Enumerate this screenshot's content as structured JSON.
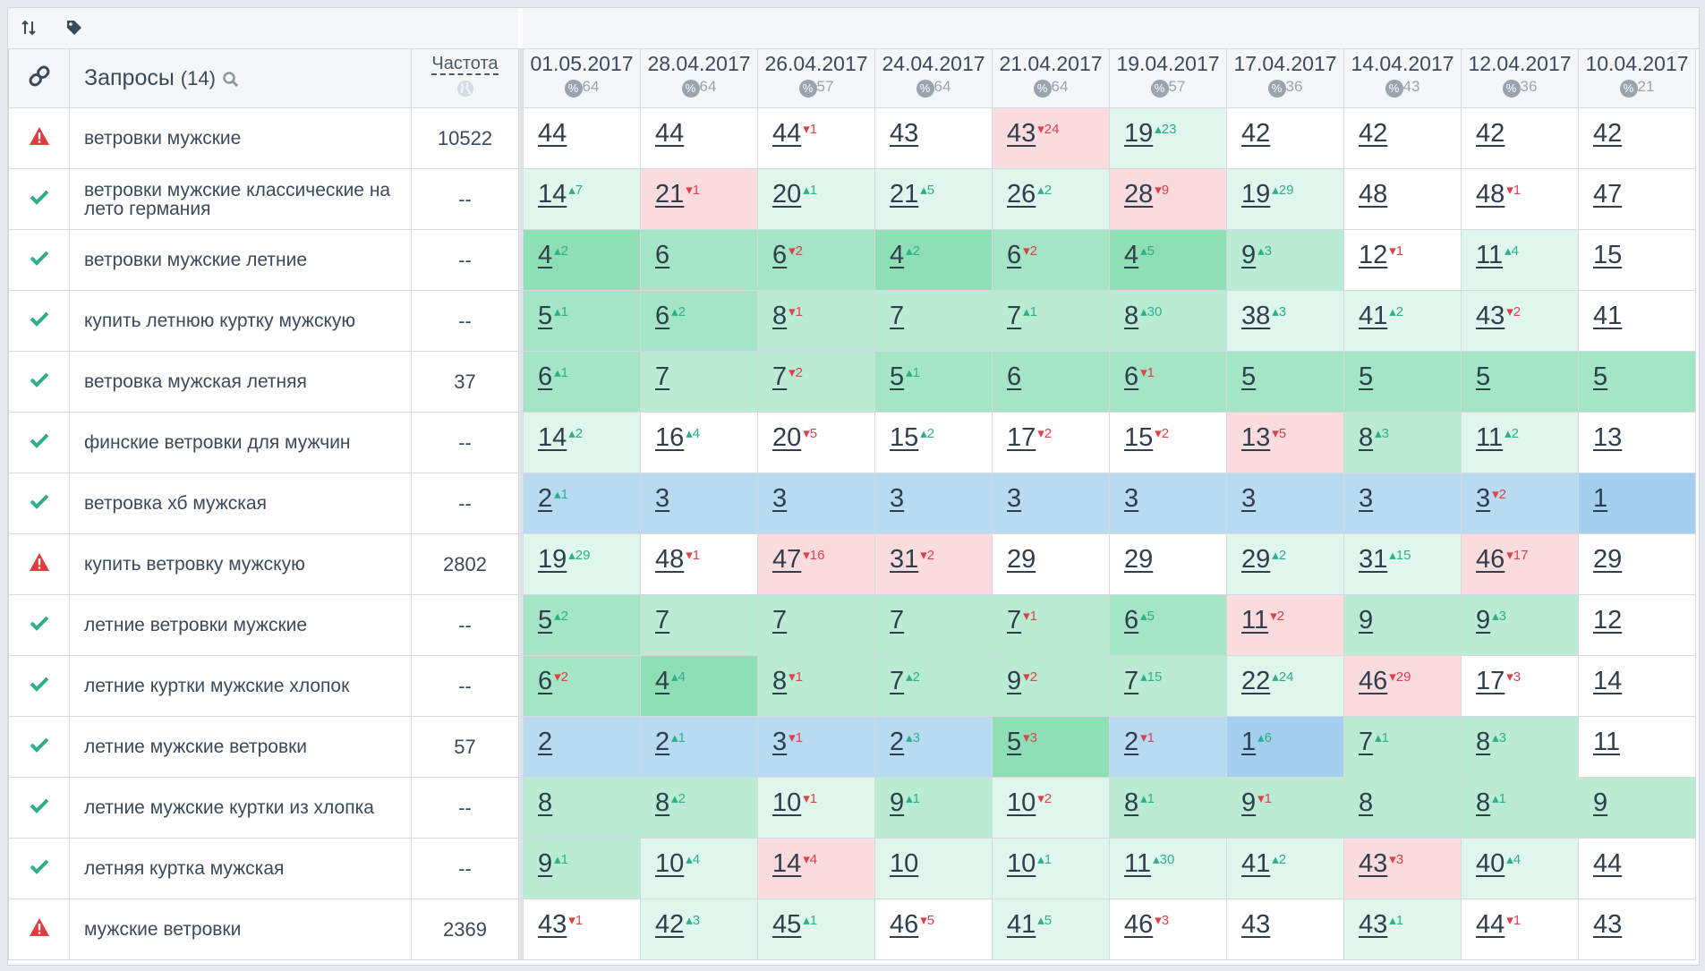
{
  "toolbar": {
    "sort_icon": "sort-arrows-icon",
    "tag_icon": "tag-icon"
  },
  "header": {
    "link_icon": "link-icon",
    "queries_title": "Запросы",
    "queries_count": "(14)",
    "search_icon": "search-icon",
    "freq_label": "Частота",
    "globe_icon": "globe-icon",
    "dates": [
      {
        "date": "01.05.2017",
        "pct": "64"
      },
      {
        "date": "28.04.2017",
        "pct": "64"
      },
      {
        "date": "26.04.2017",
        "pct": "57"
      },
      {
        "date": "24.04.2017",
        "pct": "64"
      },
      {
        "date": "21.04.2017",
        "pct": "64"
      },
      {
        "date": "19.04.2017",
        "pct": "57"
      },
      {
        "date": "17.04.2017",
        "pct": "36"
      },
      {
        "date": "14.04.2017",
        "pct": "43"
      },
      {
        "date": "12.04.2017",
        "pct": "36"
      },
      {
        "date": "10.04.2017",
        "pct": "21"
      }
    ],
    "pct_symbol": "%"
  },
  "colors": {
    "green_check": "#2eaf8c",
    "red_warning": "#e03c3c",
    "delta_up": "#2eaf8c",
    "delta_down": "#e0404a"
  },
  "rows": [
    {
      "status": "warning",
      "query": "ветровки мужские",
      "freq": "10522",
      "cells": [
        {
          "v": "44",
          "d": "",
          "bg": "w"
        },
        {
          "v": "44",
          "d": "",
          "bg": "w"
        },
        {
          "v": "44",
          "d": "-1",
          "bg": "w"
        },
        {
          "v": "43",
          "d": "",
          "bg": "w"
        },
        {
          "v": "43",
          "d": "-24",
          "bg": "r"
        },
        {
          "v": "19",
          "d": "+23",
          "bg": "g1"
        },
        {
          "v": "42",
          "d": "",
          "bg": "w"
        },
        {
          "v": "42",
          "d": "",
          "bg": "w"
        },
        {
          "v": "42",
          "d": "",
          "bg": "w"
        },
        {
          "v": "42",
          "d": "",
          "bg": "w"
        }
      ]
    },
    {
      "status": "ok",
      "query": "ветровки мужские классические на лето германия",
      "freq": "--",
      "cells": [
        {
          "v": "14",
          "d": "+7",
          "bg": "g1"
        },
        {
          "v": "21",
          "d": "-1",
          "bg": "r"
        },
        {
          "v": "20",
          "d": "+1",
          "bg": "g1"
        },
        {
          "v": "21",
          "d": "+5",
          "bg": "g1"
        },
        {
          "v": "26",
          "d": "+2",
          "bg": "g1"
        },
        {
          "v": "28",
          "d": "-9",
          "bg": "r"
        },
        {
          "v": "19",
          "d": "+29",
          "bg": "g1"
        },
        {
          "v": "48",
          "d": "",
          "bg": "w"
        },
        {
          "v": "48",
          "d": "-1",
          "bg": "w"
        },
        {
          "v": "47",
          "d": "",
          "bg": "w"
        }
      ]
    },
    {
      "status": "ok",
      "query": "ветровки мужские летние",
      "freq": "--",
      "cells": [
        {
          "v": "4",
          "d": "+2",
          "bg": "g4"
        },
        {
          "v": "6",
          "d": "",
          "bg": "g3"
        },
        {
          "v": "6",
          "d": "-2",
          "bg": "g3"
        },
        {
          "v": "4",
          "d": "+2",
          "bg": "g4"
        },
        {
          "v": "6",
          "d": "-2",
          "bg": "g3"
        },
        {
          "v": "4",
          "d": "+5",
          "bg": "g4"
        },
        {
          "v": "9",
          "d": "+3",
          "bg": "g2"
        },
        {
          "v": "12",
          "d": "-1",
          "bg": "w"
        },
        {
          "v": "11",
          "d": "+4",
          "bg": "g1"
        },
        {
          "v": "15",
          "d": "",
          "bg": "w"
        }
      ]
    },
    {
      "status": "ok",
      "query": "купить летнюю куртку мужскую",
      "freq": "--",
      "cells": [
        {
          "v": "5",
          "d": "+1",
          "bg": "g3"
        },
        {
          "v": "6",
          "d": "+2",
          "bg": "g3"
        },
        {
          "v": "8",
          "d": "-1",
          "bg": "g2"
        },
        {
          "v": "7",
          "d": "",
          "bg": "g2"
        },
        {
          "v": "7",
          "d": "+1",
          "bg": "g2"
        },
        {
          "v": "8",
          "d": "+30",
          "bg": "g2"
        },
        {
          "v": "38",
          "d": "+3",
          "bg": "g1"
        },
        {
          "v": "41",
          "d": "+2",
          "bg": "g1"
        },
        {
          "v": "43",
          "d": "-2",
          "bg": "g1"
        },
        {
          "v": "41",
          "d": "",
          "bg": "w"
        }
      ]
    },
    {
      "status": "ok",
      "query": "ветровка мужская летняя",
      "freq": "37",
      "cells": [
        {
          "v": "6",
          "d": "+1",
          "bg": "g3"
        },
        {
          "v": "7",
          "d": "",
          "bg": "g2"
        },
        {
          "v": "7",
          "d": "-2",
          "bg": "g2"
        },
        {
          "v": "5",
          "d": "+1",
          "bg": "g3"
        },
        {
          "v": "6",
          "d": "",
          "bg": "g3"
        },
        {
          "v": "6",
          "d": "-1",
          "bg": "g3"
        },
        {
          "v": "5",
          "d": "",
          "bg": "g3"
        },
        {
          "v": "5",
          "d": "",
          "bg": "g3"
        },
        {
          "v": "5",
          "d": "",
          "bg": "g3"
        },
        {
          "v": "5",
          "d": "",
          "bg": "g3"
        }
      ]
    },
    {
      "status": "ok",
      "query": "финские ветровки для мужчин",
      "freq": "--",
      "cells": [
        {
          "v": "14",
          "d": "+2",
          "bg": "g1"
        },
        {
          "v": "16",
          "d": "+4",
          "bg": "w"
        },
        {
          "v": "20",
          "d": "-5",
          "bg": "w"
        },
        {
          "v": "15",
          "d": "+2",
          "bg": "w"
        },
        {
          "v": "17",
          "d": "-2",
          "bg": "w"
        },
        {
          "v": "15",
          "d": "-2",
          "bg": "w"
        },
        {
          "v": "13",
          "d": "-5",
          "bg": "r"
        },
        {
          "v": "8",
          "d": "+3",
          "bg": "g2"
        },
        {
          "v": "11",
          "d": "+2",
          "bg": "g1"
        },
        {
          "v": "13",
          "d": "",
          "bg": "w"
        }
      ]
    },
    {
      "status": "ok",
      "query": "ветровка хб мужская",
      "freq": "--",
      "cells": [
        {
          "v": "2",
          "d": "+1",
          "bg": "b1"
        },
        {
          "v": "3",
          "d": "",
          "bg": "b1"
        },
        {
          "v": "3",
          "d": "",
          "bg": "b1"
        },
        {
          "v": "3",
          "d": "",
          "bg": "b1"
        },
        {
          "v": "3",
          "d": "",
          "bg": "b1"
        },
        {
          "v": "3",
          "d": "",
          "bg": "b1"
        },
        {
          "v": "3",
          "d": "",
          "bg": "b1"
        },
        {
          "v": "3",
          "d": "",
          "bg": "b1"
        },
        {
          "v": "3",
          "d": "-2",
          "bg": "b1"
        },
        {
          "v": "1",
          "d": "",
          "bg": "b2"
        }
      ]
    },
    {
      "status": "warning",
      "query": "купить ветровку мужскую",
      "freq": "2802",
      "cells": [
        {
          "v": "19",
          "d": "+29",
          "bg": "g1"
        },
        {
          "v": "48",
          "d": "-1",
          "bg": "w"
        },
        {
          "v": "47",
          "d": "-16",
          "bg": "r"
        },
        {
          "v": "31",
          "d": "-2",
          "bg": "r"
        },
        {
          "v": "29",
          "d": "",
          "bg": "w"
        },
        {
          "v": "29",
          "d": "",
          "bg": "w"
        },
        {
          "v": "29",
          "d": "+2",
          "bg": "g1"
        },
        {
          "v": "31",
          "d": "+15",
          "bg": "g1"
        },
        {
          "v": "46",
          "d": "-17",
          "bg": "r"
        },
        {
          "v": "29",
          "d": "",
          "bg": "w"
        }
      ]
    },
    {
      "status": "ok",
      "query": "летние ветровки мужские",
      "freq": "--",
      "cells": [
        {
          "v": "5",
          "d": "+2",
          "bg": "g3"
        },
        {
          "v": "7",
          "d": "",
          "bg": "g2"
        },
        {
          "v": "7",
          "d": "",
          "bg": "g2"
        },
        {
          "v": "7",
          "d": "",
          "bg": "g2"
        },
        {
          "v": "7",
          "d": "-1",
          "bg": "g2"
        },
        {
          "v": "6",
          "d": "+5",
          "bg": "g3"
        },
        {
          "v": "11",
          "d": "-2",
          "bg": "r"
        },
        {
          "v": "9",
          "d": "",
          "bg": "g2"
        },
        {
          "v": "9",
          "d": "+3",
          "bg": "g2"
        },
        {
          "v": "12",
          "d": "",
          "bg": "w"
        }
      ]
    },
    {
      "status": "ok",
      "query": "летние куртки мужские хлопок",
      "freq": "--",
      "cells": [
        {
          "v": "6",
          "d": "-2",
          "bg": "g3"
        },
        {
          "v": "4",
          "d": "+4",
          "bg": "g4"
        },
        {
          "v": "8",
          "d": "-1",
          "bg": "g2"
        },
        {
          "v": "7",
          "d": "+2",
          "bg": "g2"
        },
        {
          "v": "9",
          "d": "-2",
          "bg": "g2"
        },
        {
          "v": "7",
          "d": "+15",
          "bg": "g2"
        },
        {
          "v": "22",
          "d": "+24",
          "bg": "g1"
        },
        {
          "v": "46",
          "d": "-29",
          "bg": "r"
        },
        {
          "v": "17",
          "d": "-3",
          "bg": "w"
        },
        {
          "v": "14",
          "d": "",
          "bg": "w"
        }
      ]
    },
    {
      "status": "ok",
      "query": "летние мужские ветровки",
      "freq": "57",
      "cells": [
        {
          "v": "2",
          "d": "",
          "bg": "b1"
        },
        {
          "v": "2",
          "d": "+1",
          "bg": "b1"
        },
        {
          "v": "3",
          "d": "-1",
          "bg": "b1"
        },
        {
          "v": "2",
          "d": "+3",
          "bg": "b1"
        },
        {
          "v": "5",
          "d": "-3",
          "bg": "g4"
        },
        {
          "v": "2",
          "d": "-1",
          "bg": "b1"
        },
        {
          "v": "1",
          "d": "+6",
          "bg": "b2"
        },
        {
          "v": "7",
          "d": "+1",
          "bg": "g2"
        },
        {
          "v": "8",
          "d": "+3",
          "bg": "g2"
        },
        {
          "v": "11",
          "d": "",
          "bg": "w"
        }
      ]
    },
    {
      "status": "ok",
      "query": "летние мужские куртки из хлопка",
      "freq": "--",
      "cells": [
        {
          "v": "8",
          "d": "",
          "bg": "g2"
        },
        {
          "v": "8",
          "d": "+2",
          "bg": "g2"
        },
        {
          "v": "10",
          "d": "-1",
          "bg": "g1"
        },
        {
          "v": "9",
          "d": "+1",
          "bg": "g2"
        },
        {
          "v": "10",
          "d": "-2",
          "bg": "g1"
        },
        {
          "v": "8",
          "d": "+1",
          "bg": "g2"
        },
        {
          "v": "9",
          "d": "-1",
          "bg": "g2"
        },
        {
          "v": "8",
          "d": "",
          "bg": "g2"
        },
        {
          "v": "8",
          "d": "+1",
          "bg": "g2"
        },
        {
          "v": "9",
          "d": "",
          "bg": "g2"
        }
      ]
    },
    {
      "status": "ok",
      "query": "летняя куртка мужская",
      "freq": "--",
      "cells": [
        {
          "v": "9",
          "d": "+1",
          "bg": "g2"
        },
        {
          "v": "10",
          "d": "+4",
          "bg": "g1"
        },
        {
          "v": "14",
          "d": "-4",
          "bg": "r"
        },
        {
          "v": "10",
          "d": "",
          "bg": "g1"
        },
        {
          "v": "10",
          "d": "+1",
          "bg": "g1"
        },
        {
          "v": "11",
          "d": "+30",
          "bg": "g1"
        },
        {
          "v": "41",
          "d": "+2",
          "bg": "g1"
        },
        {
          "v": "43",
          "d": "-3",
          "bg": "r"
        },
        {
          "v": "40",
          "d": "+4",
          "bg": "g1"
        },
        {
          "v": "44",
          "d": "",
          "bg": "w"
        }
      ]
    },
    {
      "status": "warning",
      "query": "мужские ветровки",
      "freq": "2369",
      "cells": [
        {
          "v": "43",
          "d": "-1",
          "bg": "w"
        },
        {
          "v": "42",
          "d": "+3",
          "bg": "g1"
        },
        {
          "v": "45",
          "d": "+1",
          "bg": "g1"
        },
        {
          "v": "46",
          "d": "-5",
          "bg": "w"
        },
        {
          "v": "41",
          "d": "+5",
          "bg": "g1"
        },
        {
          "v": "46",
          "d": "-3",
          "bg": "w"
        },
        {
          "v": "43",
          "d": "",
          "bg": "w"
        },
        {
          "v": "43",
          "d": "+1",
          "bg": "g1"
        },
        {
          "v": "44",
          "d": "-1",
          "bg": "w"
        },
        {
          "v": "43",
          "d": "",
          "bg": "w"
        }
      ]
    }
  ]
}
